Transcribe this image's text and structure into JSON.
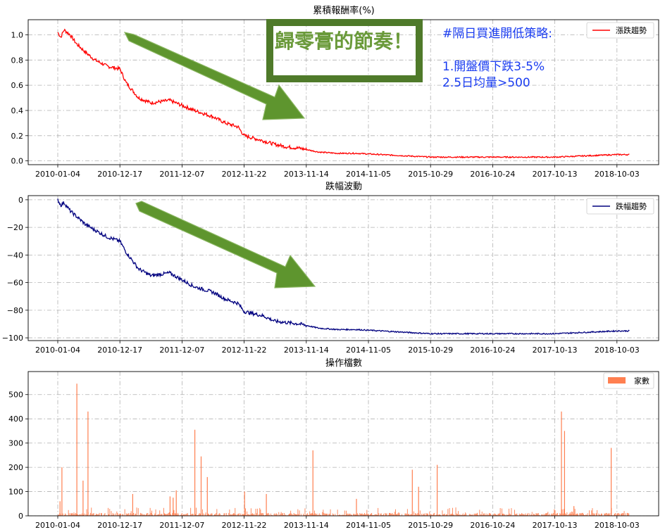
{
  "charts": [
    {
      "id": "cumulative",
      "title": "累積報酬率(%)",
      "type": "line",
      "color": "#ff0000",
      "legend": "漲跌趨勢",
      "legend_loc": "upper right",
      "xticks": [
        "2010-01-04",
        "2010-12-17",
        "2011-12-07",
        "2012-11-22",
        "2013-11-14",
        "2014-11-05",
        "2015-10-29",
        "2016-10-24",
        "2017-10-13",
        "2018-10-03"
      ],
      "yticks": [
        "0.0",
        "0.2",
        "0.4",
        "0.6",
        "0.8",
        "1.0"
      ],
      "ytick_values": [
        0.0,
        0.2,
        0.4,
        0.6,
        0.8,
        1.0
      ],
      "ylim": [
        -0.03,
        1.12
      ],
      "grid": true
    },
    {
      "id": "drawdown",
      "title": "跌幅波動",
      "type": "line",
      "color": "#00007f",
      "legend": "跌幅趨勢",
      "legend_loc": "upper right",
      "xticks": [
        "2010-01-04",
        "2010-12-17",
        "2011-12-07",
        "2012-11-22",
        "2013-11-14",
        "2014-11-05",
        "2015-10-29",
        "2016-10-24",
        "2017-10-13",
        "2018-10-03"
      ],
      "yticks": [
        "0",
        "−20",
        "−40",
        "−60",
        "−80",
        "−100"
      ],
      "ytick_values": [
        0,
        -20,
        -40,
        -60,
        -80,
        -100
      ],
      "ylim": [
        -102,
        3
      ],
      "grid": true
    },
    {
      "id": "counts",
      "title": "操作檔數",
      "type": "bar",
      "color": "#ff7f50",
      "legend": "家數",
      "legend_loc": "upper right",
      "xticks": [
        "2010-01-04",
        "2010-12-17",
        "2011-12-07",
        "2012-11-22",
        "2013-11-14",
        "2014-11-05",
        "2015-10-29",
        "2016-10-24",
        "2017-10-13",
        "2018-10-03"
      ],
      "yticks": [
        "0",
        "100",
        "200",
        "300",
        "400",
        "500"
      ],
      "ytick_values": [
        0,
        100,
        200,
        300,
        400,
        500
      ],
      "ylim": [
        0,
        595
      ],
      "grid": true
    }
  ],
  "chart_data": [
    {
      "type": "line",
      "title": "累積報酬率(%)",
      "series": [
        {
          "name": "漲跌趨勢",
          "color": "#ff0000",
          "x": [
            0,
            0.05,
            0.1,
            0.2,
            0.3,
            0.45,
            0.6,
            0.8,
            1.0,
            1.1,
            1.3,
            1.5,
            1.8,
            2.0,
            2.2,
            2.5,
            2.7,
            2.9,
            3.0,
            3.3,
            3.5,
            3.7,
            3.9,
            4.2,
            4.5,
            4.8,
            5.2,
            5.6,
            6.0,
            6.5,
            7.0,
            7.5,
            8.0,
            8.5,
            9.0,
            9.2
          ],
          "y": [
            1.02,
            0.98,
            1.04,
            1.0,
            0.93,
            0.86,
            0.8,
            0.75,
            0.73,
            0.62,
            0.5,
            0.46,
            0.48,
            0.44,
            0.4,
            0.35,
            0.3,
            0.27,
            0.2,
            0.16,
            0.13,
            0.11,
            0.1,
            0.07,
            0.06,
            0.06,
            0.05,
            0.04,
            0.03,
            0.03,
            0.03,
            0.03,
            0.03,
            0.04,
            0.05,
            0.05
          ]
        }
      ],
      "xlabel": "",
      "ylabel": "",
      "ylim": [
        -0.03,
        1.12
      ]
    },
    {
      "type": "line",
      "title": "跌幅波動",
      "series": [
        {
          "name": "跌幅趨勢",
          "color": "#00007f",
          "x": [
            0,
            0.05,
            0.1,
            0.2,
            0.3,
            0.45,
            0.6,
            0.8,
            1.0,
            1.1,
            1.3,
            1.5,
            1.8,
            2.0,
            2.2,
            2.5,
            2.7,
            2.9,
            3.0,
            3.3,
            3.5,
            3.7,
            3.9,
            4.2,
            4.5,
            4.8,
            5.2,
            5.6,
            6.0,
            6.5,
            7.0,
            7.5,
            8.0,
            8.5,
            9.0,
            9.2
          ],
          "y": [
            0,
            -4,
            -2,
            -8,
            -12,
            -18,
            -22,
            -27,
            -30,
            -38,
            -50,
            -55,
            -53,
            -58,
            -63,
            -67,
            -72,
            -75,
            -81,
            -84,
            -88,
            -89,
            -90,
            -93,
            -94,
            -94,
            -95,
            -96,
            -97,
            -97,
            -97,
            -97,
            -97,
            -96,
            -95,
            -95
          ]
        }
      ],
      "xlabel": "",
      "ylabel": "",
      "ylim": [
        -102,
        3
      ]
    },
    {
      "type": "bar",
      "title": "操作檔數",
      "series": [
        {
          "name": "家數",
          "color": "#ff7f50",
          "spikes": [
            [
              0.03,
              60
            ],
            [
              0.06,
              200
            ],
            [
              0.3,
              545
            ],
            [
              0.4,
              145
            ],
            [
              0.48,
              430
            ],
            [
              1.2,
              90
            ],
            [
              1.8,
              80
            ],
            [
              1.9,
              105
            ],
            [
              1.85,
              75
            ],
            [
              2.2,
              355
            ],
            [
              2.3,
              245
            ],
            [
              2.4,
              160
            ],
            [
              3.0,
              100
            ],
            [
              3.35,
              90
            ],
            [
              4.1,
              270
            ],
            [
              4.8,
              70
            ],
            [
              5.7,
              190
            ],
            [
              5.8,
              120
            ],
            [
              6.1,
              210
            ],
            [
              8.1,
              430
            ],
            [
              8.15,
              350
            ],
            [
              8.3,
              40
            ],
            [
              8.9,
              280
            ]
          ],
          "baseline": 10
        }
      ],
      "xlabel": "",
      "ylabel": "",
      "ylim": [
        0,
        595
      ]
    }
  ],
  "annotations": {
    "box_text": "歸零膏的節奏！",
    "blue_lines": [
      "#隔日買進開低策略:",
      "",
      "1.開盤價下跌3-5%",
      "2.5日均量>500"
    ],
    "arrow_color": "#5e952e",
    "box_color": "#4f7a2a"
  }
}
